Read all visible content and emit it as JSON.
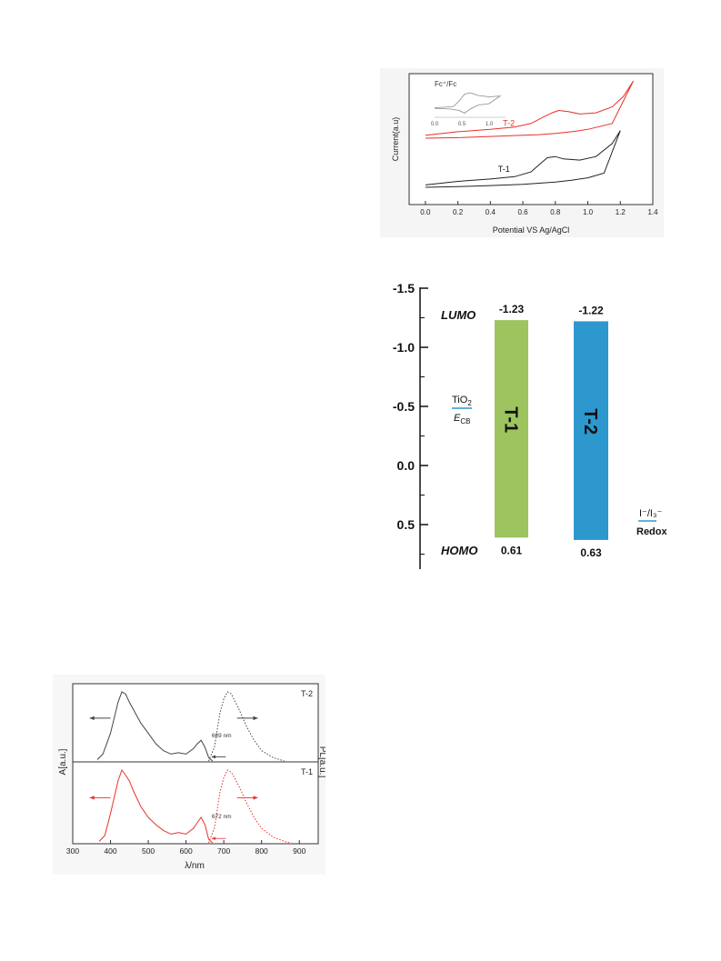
{
  "cv_chart": {
    "chart_data": {
      "type": "line",
      "xlabel": "Potential VS Ag/AgCl",
      "ylabel": "Current(a.u)",
      "xlim": [
        -0.1,
        1.4
      ],
      "xticks": [
        "0.0",
        "0.2",
        "0.4",
        "0.6",
        "0.8",
        "1.0",
        "1.2",
        "1.4"
      ],
      "series": [
        {
          "name": "T-2",
          "color": "#e8302a",
          "x": [
            0.0,
            0.2,
            0.4,
            0.55,
            0.65,
            0.72,
            0.78,
            0.82,
            0.88,
            0.95,
            1.05,
            1.15,
            1.22,
            1.28,
            1.15,
            1.0,
            0.9,
            0.8,
            0.7,
            0.6,
            0.4,
            0.2,
            0.0
          ],
          "y": [
            0.54,
            0.57,
            0.59,
            0.61,
            0.64,
            0.69,
            0.73,
            0.75,
            0.74,
            0.72,
            0.73,
            0.78,
            0.87,
            1.0,
            0.64,
            0.59,
            0.57,
            0.555,
            0.545,
            0.54,
            0.53,
            0.52,
            0.515
          ]
        },
        {
          "name": "T-1",
          "color": "#222222",
          "x": [
            0.0,
            0.2,
            0.4,
            0.55,
            0.65,
            0.7,
            0.75,
            0.8,
            0.85,
            0.95,
            1.05,
            1.15,
            1.2,
            1.1,
            1.0,
            0.9,
            0.8,
            0.7,
            0.6,
            0.4,
            0.2,
            0.0
          ],
          "y": [
            0.12,
            0.15,
            0.17,
            0.19,
            0.23,
            0.29,
            0.35,
            0.36,
            0.34,
            0.33,
            0.36,
            0.47,
            0.58,
            0.22,
            0.18,
            0.16,
            0.145,
            0.135,
            0.125,
            0.115,
            0.105,
            0.1
          ]
        }
      ],
      "inset": {
        "label": "Fc⁺/Fc",
        "xticks": [
          "0.0",
          "0.5",
          "1.0"
        ],
        "x": [
          0.0,
          0.2,
          0.35,
          0.45,
          0.55,
          0.65,
          0.8,
          1.0,
          1.2,
          1.0,
          0.8,
          0.65,
          0.55,
          0.45,
          0.3,
          0.1,
          0.0
        ],
        "y": [
          0.35,
          0.37,
          0.4,
          0.6,
          0.85,
          0.9,
          0.8,
          0.75,
          0.78,
          0.5,
          0.45,
          0.3,
          0.15,
          0.25,
          0.3,
          0.32,
          0.33
        ]
      }
    }
  },
  "energy_chart": {
    "chart_data": {
      "type": "bar",
      "ylim": [
        -1.5,
        0.85
      ],
      "yticks": [
        "-1.5",
        "-1.0",
        "-0.5",
        "0.0",
        "0.5"
      ],
      "labels": {
        "lumo": "LUMO",
        "homo": "HOMO",
        "tio2": "TiO",
        "tio2_sub": "2",
        "ecb": "E",
        "ecb_sub": "CB",
        "redox_line1": "I⁻/I₃⁻",
        "redox_line2": "Redox"
      },
      "bars": [
        {
          "name": "T-1",
          "lumo": -1.23,
          "homo": 0.61,
          "lumo_label": "-1.23",
          "homo_label": "0.61",
          "color": "#9dc45f"
        },
        {
          "name": "T-2",
          "lumo": -1.22,
          "homo": 0.63,
          "lumo_label": "-1.22",
          "homo_label": "0.63",
          "color": "#2d98cd"
        }
      ]
    }
  },
  "spectra_chart": {
    "chart_data": {
      "type": "line",
      "xlabel": "λ/nm",
      "ylabel_left": "A[a.u.]",
      "ylabel_right": "PL[a.u.]",
      "xlim": [
        300,
        950
      ],
      "xticks": [
        "300",
        "400",
        "500",
        "600",
        "700",
        "800",
        "900"
      ],
      "panels": [
        {
          "name": "T-2",
          "color": "#444444",
          "annotation": "669 nm",
          "abs_x": [
            365,
            380,
            400,
            420,
            430,
            440,
            450,
            460,
            480,
            500,
            520,
            540,
            560,
            580,
            600,
            620,
            630,
            640,
            650,
            660,
            670
          ],
          "abs_y": [
            0.02,
            0.1,
            0.4,
            0.85,
            1.0,
            0.97,
            0.85,
            0.75,
            0.55,
            0.4,
            0.25,
            0.15,
            0.1,
            0.12,
            0.1,
            0.18,
            0.25,
            0.3,
            0.2,
            0.05,
            0.0
          ],
          "pl_x": [
            660,
            675,
            690,
            700,
            710,
            720,
            740,
            760,
            780,
            800,
            830,
            860
          ],
          "pl_y": [
            0.0,
            0.2,
            0.7,
            0.9,
            1.0,
            0.97,
            0.75,
            0.5,
            0.3,
            0.15,
            0.05,
            0.0
          ]
        },
        {
          "name": "T-1",
          "color": "#e8302a",
          "annotation": "672 nm",
          "abs_x": [
            370,
            385,
            400,
            420,
            430,
            440,
            450,
            460,
            480,
            500,
            520,
            540,
            560,
            580,
            600,
            620,
            630,
            640,
            650,
            660,
            670
          ],
          "abs_y": [
            0.02,
            0.1,
            0.4,
            0.85,
            1.0,
            0.93,
            0.85,
            0.72,
            0.5,
            0.35,
            0.25,
            0.17,
            0.12,
            0.14,
            0.12,
            0.2,
            0.28,
            0.35,
            0.25,
            0.05,
            0.0
          ],
          "pl_x": [
            660,
            675,
            690,
            700,
            710,
            720,
            740,
            760,
            780,
            800,
            830,
            860,
            875
          ],
          "pl_y": [
            0.0,
            0.2,
            0.7,
            0.9,
            1.0,
            0.97,
            0.78,
            0.55,
            0.35,
            0.2,
            0.08,
            0.02,
            0.0
          ]
        }
      ]
    }
  }
}
